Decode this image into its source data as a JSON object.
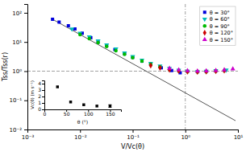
{
  "chart_data": [
    {
      "type": "scatter",
      "xlabel": "V/Vc(θ)",
      "ylabel": "Tss/Tss(r)",
      "log": true,
      "grid": false,
      "legend": "upper right",
      "xlim": [
        0.001,
        10
      ],
      "ylim": [
        0.01,
        200
      ],
      "xticks": [
        {
          "value": 0.001,
          "label": "10⁻³"
        },
        {
          "value": 0.01,
          "label": "10⁻²"
        },
        {
          "value": 0.1,
          "label": "10⁻¹"
        },
        {
          "value": 1,
          "label": "10⁰"
        },
        {
          "value": 10,
          "label": "10¹"
        }
      ],
      "yticks": [
        {
          "value": 0.01,
          "label": "10⁻²"
        },
        {
          "value": 0.1,
          "label": "10⁻¹"
        },
        {
          "value": 1,
          "label": "10⁰"
        },
        {
          "value": 10,
          "label": "10¹"
        },
        {
          "value": 100,
          "label": "10²"
        }
      ],
      "series": [
        {
          "name": "θ = 30°",
          "color": "#0000dd",
          "marker": "square",
          "x": [
            0.003,
            0.004,
            0.006,
            0.008,
            0.011,
            0.016,
            0.022,
            0.032,
            0.046,
            0.07,
            0.1,
            0.15,
            0.22,
            0.35,
            0.55,
            0.8
          ],
          "values": [
            60,
            48,
            36,
            28,
            20,
            14,
            10,
            7.5,
            5.5,
            4.0,
            3.0,
            2.2,
            1.7,
            1.3,
            1.05,
            0.88
          ]
        },
        {
          "name": "θ = 60°",
          "color": "#00bbbb",
          "marker": "triangle-down",
          "x": [
            0.007,
            0.01,
            0.015,
            0.022,
            0.032,
            0.048,
            0.07,
            0.1,
            0.15,
            0.22,
            0.33,
            0.5,
            0.75,
            1.1,
            1.7,
            2.5,
            3.8,
            6.0
          ],
          "values": [
            28,
            20,
            15,
            11,
            8.0,
            5.8,
            4.2,
            3.2,
            2.4,
            1.85,
            1.5,
            1.25,
            1.08,
            1.0,
            0.97,
            1.0,
            1.05,
            1.1
          ]
        },
        {
          "name": "θ = 90°",
          "color": "#00bb00",
          "marker": "circle",
          "x": [
            0.01,
            0.015,
            0.022,
            0.032,
            0.048,
            0.07,
            0.1,
            0.15,
            0.22,
            0.33,
            0.5,
            0.75,
            1.1,
            1.7,
            2.5,
            3.8,
            5.5
          ],
          "values": [
            18,
            13,
            9.5,
            7.0,
            5.0,
            3.8,
            2.9,
            2.2,
            1.7,
            1.4,
            1.15,
            1.02,
            0.95,
            0.93,
            0.95,
            1.0,
            1.05
          ]
        },
        {
          "name": "θ = 120°",
          "color": "#cc0000",
          "marker": "diamond",
          "x": [
            0.22,
            0.33,
            0.5,
            0.75,
            1.1,
            1.7,
            2.5,
            3.8,
            5.5
          ],
          "values": [
            1.55,
            1.3,
            1.12,
            1.02,
            0.97,
            0.95,
            0.97,
            1.0,
            1.05
          ]
        },
        {
          "name": "θ = 150°",
          "color": "#cc00cc",
          "marker": "triangle-up",
          "x": [
            0.5,
            0.75,
            1.1,
            1.7,
            2.5,
            3.8,
            5.5,
            8.0
          ],
          "values": [
            1.25,
            1.1,
            1.03,
            1.0,
            1.02,
            1.05,
            1.1,
            1.18
          ]
        }
      ],
      "fit_line": {
        "x": [
          0.003,
          9.0
        ],
        "values": [
          60,
          0.02
        ],
        "color": "#555555",
        "line_style": "solid"
      },
      "reference_lines": [
        {
          "axis": "y",
          "value": 1.0,
          "color": "#888888",
          "line_style": "dashed"
        },
        {
          "axis": "x",
          "value": 1.0,
          "color": "#888888",
          "line_style": "dashdot"
        }
      ]
    },
    {
      "type": "scatter",
      "xlabel": "θ (°)",
      "ylabel": "Vc(θ) (m s⁻¹)",
      "grid": false,
      "xlim": [
        0,
        175
      ],
      "ylim": [
        0,
        4.5
      ],
      "xticks": [
        0,
        50,
        100,
        150
      ],
      "yticks": [
        0,
        1,
        2,
        3,
        4
      ],
      "x": [
        30,
        60,
        90,
        120,
        150
      ],
      "series": [
        {
          "color": "#000000",
          "marker": "square",
          "values": [
            3.5,
            1.15,
            0.72,
            0.52,
            0.52
          ],
          "errors": [
            0,
            0,
            0,
            0,
            0.2
          ]
        }
      ]
    }
  ]
}
